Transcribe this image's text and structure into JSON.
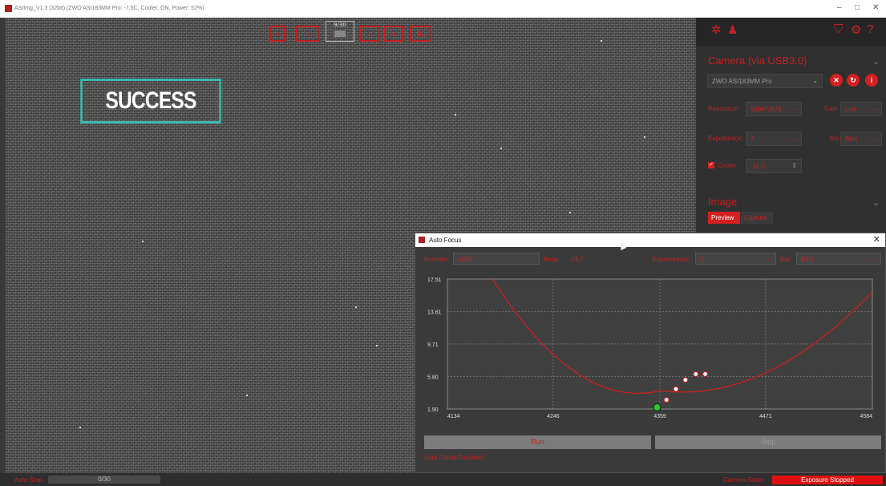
{
  "window": {
    "title": "ASIImg_V1.3 (32bit)  (ZWO ASI183MM Pro: -7.5C, Cooler: ON, Power: 52%)",
    "minimize": "–",
    "maximize": "□",
    "close": "✕"
  },
  "viewer": {
    "frame_label": "9/30",
    "success_text": "SUCCESS"
  },
  "panel": {
    "camera_section": "Camera (via USB3.0)",
    "camera_name": "ZWO ASI183MM Pro",
    "resolution_label": "Resolution",
    "resolution_value": "5496*3672",
    "gain_label": "Gain",
    "gain_value": "Low",
    "exposure_label": "Exposure(s)",
    "exposure_value": "2",
    "bin_label": "Bin",
    "bin_value": "Bin1",
    "cooler_label": "Cooler",
    "cooler_value": "-11 C",
    "image_section": "Image",
    "tabs": [
      "Preview",
      "Capture"
    ]
  },
  "autofocus": {
    "title": "Auto Focus",
    "position_label": "Position:",
    "position_value": "4368",
    "temp_label": "Temp:",
    "temp_value": "23.7",
    "exposure_label": "Exposure(s):",
    "exposure_value": "2",
    "bin_label": "Bin:",
    "bin_value": "Bin1",
    "run_label": "Run",
    "stop_label": "Stop",
    "status_text": "Auto Focus Finished!"
  },
  "chart_data": {
    "type": "scatter",
    "title": "",
    "xlabel": "",
    "ylabel": "",
    "xlim": [
      4134,
      4584
    ],
    "ylim": [
      1.9,
      17.51
    ],
    "x_ticks": [
      "4134",
      "4246",
      "4359",
      "4471",
      "4584"
    ],
    "y_ticks": [
      "1.90",
      "5.80",
      "9.71",
      "13.61",
      "17.51"
    ],
    "grid": true,
    "points": [
      {
        "x": 4356,
        "y": 2.1,
        "color": "#2ec42e"
      },
      {
        "x": 4366,
        "y": 3.0,
        "color": "#ffffff"
      },
      {
        "x": 4376,
        "y": 4.3,
        "color": "#ffffff"
      },
      {
        "x": 4386,
        "y": 5.4,
        "color": "#ffffff"
      },
      {
        "x": 4397,
        "y": 6.1,
        "color": "#ffffff"
      },
      {
        "x": 4407,
        "y": 6.1,
        "color": "#ffffff"
      }
    ],
    "curve": {
      "vertex_x": 4359,
      "vertex_y": 4.1,
      "left_x": 4182,
      "left_y": 17.51,
      "right_x": 4584,
      "right_y": 16.0,
      "color": "#c42020"
    }
  },
  "statusbar": {
    "auto_stop_label": "Auto Stop",
    "progress_text": "0/30",
    "progress": 0,
    "camera_state_label": "Camera State:",
    "camera_state_value": "Exposure Stopped"
  }
}
